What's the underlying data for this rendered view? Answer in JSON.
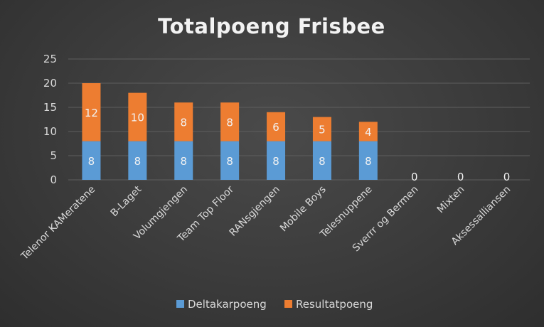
{
  "chart_data": {
    "type": "bar",
    "stacked": true,
    "title": "Totalpoeng Frisbee",
    "xlabel": "",
    "ylabel": "",
    "ylim": [
      0,
      25
    ],
    "yticks": [
      "0",
      "5",
      "10",
      "15",
      "20",
      "25"
    ],
    "grid": true,
    "legend_position": "bottom",
    "categories": [
      "Telenor KAMeratene",
      "B-Laget",
      "Volumgjengen",
      "Team Top Floor",
      "RANsgjengen",
      "Mobile Boys",
      "Telesnuppene",
      "Sverrr og Bermen",
      "Mixten",
      "Aksessalliansen"
    ],
    "series": [
      {
        "name": "Deltakarpoeng",
        "color": "#5b9bd5",
        "values": [
          8,
          8,
          8,
          8,
          8,
          8,
          8,
          0,
          0,
          0
        ]
      },
      {
        "name": "Resultatpoeng",
        "color": "#ed7d31",
        "values": [
          12,
          10,
          8,
          8,
          6,
          5,
          4,
          0,
          0,
          0
        ]
      }
    ]
  }
}
